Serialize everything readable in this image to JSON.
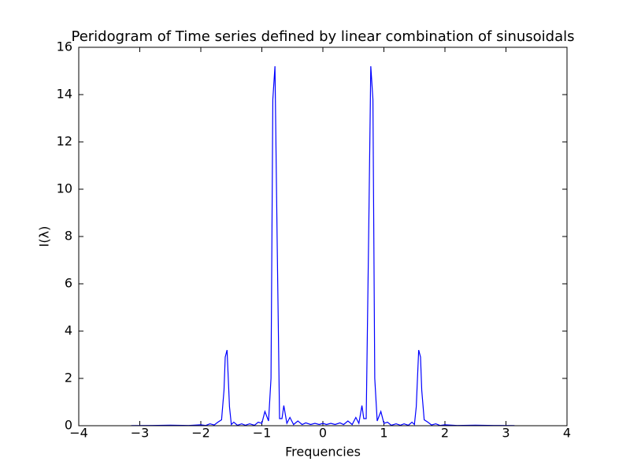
{
  "chart_data": {
    "type": "line",
    "title": "Peridogram of Time series defined by linear combination of sinusoidals",
    "x_label": "Frequencies",
    "y_label": "I(λ)",
    "color": "#0000ff",
    "xlim": [
      -4,
      4
    ],
    "ylim": [
      0,
      16
    ],
    "xticks": [
      {
        "value": -4,
        "label": "−4"
      },
      {
        "value": -3,
        "label": "−3"
      },
      {
        "value": -2,
        "label": "−2"
      },
      {
        "value": -1,
        "label": "−1"
      },
      0,
      1,
      2,
      3,
      4
    ],
    "yticks": [
      0,
      2,
      4,
      6,
      8,
      10,
      12,
      14,
      16
    ],
    "x": [
      -3.14,
      -2.8,
      -2.5,
      -2.2,
      -2.0,
      -1.92,
      -1.85,
      -1.78,
      -1.72,
      -1.66,
      -1.62,
      -1.6,
      -1.57,
      -1.53,
      -1.5,
      -1.46,
      -1.4,
      -1.33,
      -1.27,
      -1.2,
      -1.12,
      -1.06,
      -1.0,
      -0.95,
      -0.89,
      -0.85,
      -0.82,
      -0.785,
      -0.75,
      -0.71,
      -0.67,
      -0.64,
      -0.59,
      -0.54,
      -0.48,
      -0.41,
      -0.34,
      -0.28,
      -0.2,
      -0.13,
      -0.06,
      0.0,
      0.06,
      0.13,
      0.2,
      0.28,
      0.34,
      0.41,
      0.48,
      0.54,
      0.59,
      0.64,
      0.67,
      0.71,
      0.75,
      0.785,
      0.82,
      0.85,
      0.89,
      0.95,
      1.0,
      1.06,
      1.12,
      1.2,
      1.27,
      1.33,
      1.4,
      1.46,
      1.5,
      1.53,
      1.57,
      1.6,
      1.62,
      1.66,
      1.72,
      1.78,
      1.85,
      1.92,
      2.0,
      2.2,
      2.5,
      2.8,
      3.14
    ],
    "values": [
      0.005,
      0.01,
      0.02,
      0.01,
      0.04,
      0.01,
      0.08,
      0.03,
      0.15,
      0.25,
      1.5,
      2.9,
      3.2,
      0.8,
      0.05,
      0.15,
      0.02,
      0.08,
      0.02,
      0.08,
      0.02,
      0.15,
      0.1,
      0.6,
      0.2,
      2.0,
      13.8,
      15.2,
      8.0,
      0.3,
      0.3,
      0.85,
      0.1,
      0.35,
      0.05,
      0.2,
      0.05,
      0.12,
      0.05,
      0.1,
      0.05,
      0.1,
      0.05,
      0.1,
      0.05,
      0.12,
      0.05,
      0.2,
      0.05,
      0.35,
      0.1,
      0.85,
      0.3,
      0.3,
      8.0,
      15.2,
      13.8,
      2.0,
      0.2,
      0.6,
      0.1,
      0.15,
      0.02,
      0.08,
      0.02,
      0.08,
      0.02,
      0.15,
      0.05,
      0.8,
      3.2,
      2.9,
      1.5,
      0.25,
      0.15,
      0.03,
      0.08,
      0.01,
      0.04,
      0.01,
      0.02,
      0.01,
      0.005
    ]
  }
}
